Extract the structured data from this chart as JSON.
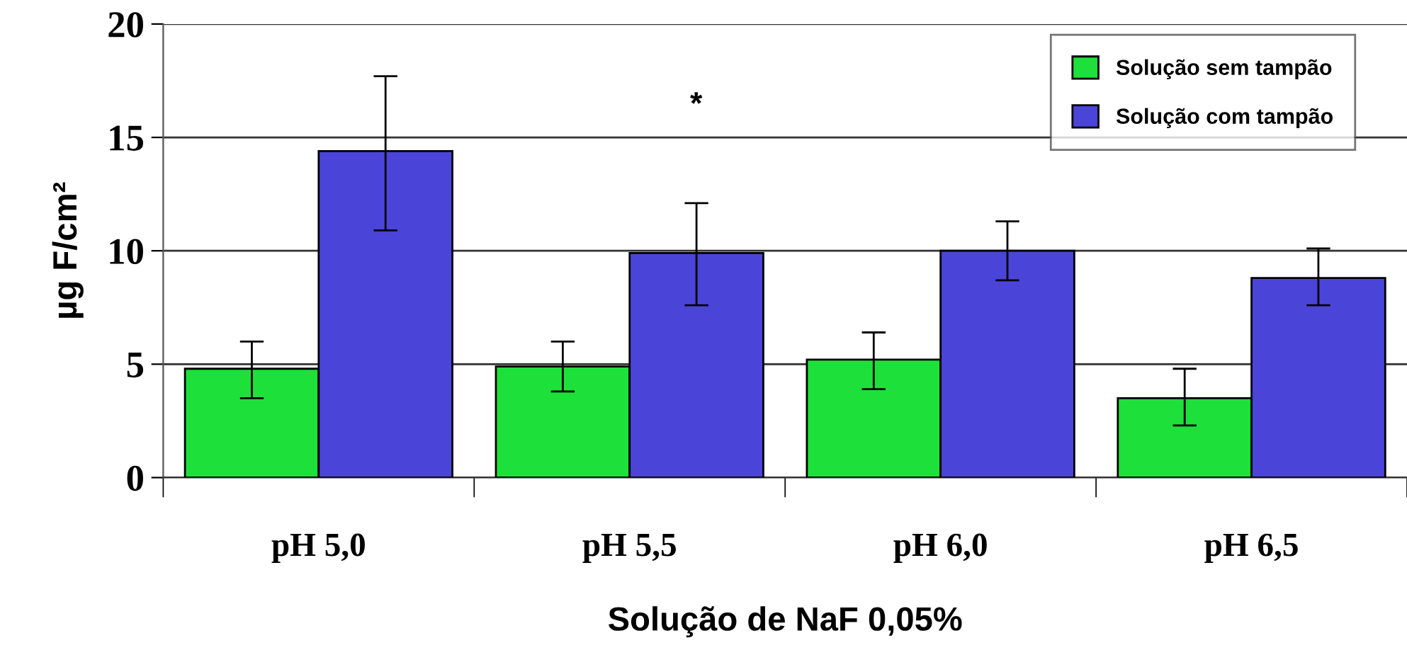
{
  "chart_data": {
    "type": "bar",
    "xlabel": "Solução de NaF 0,05%",
    "ylabel": "µg F/cm²",
    "categories": [
      "pH 5,0",
      "pH 5,5",
      "pH 6,0",
      "pH 6,5"
    ],
    "series": [
      {
        "name": "Solução sem tampão",
        "color": "#1ee03a",
        "values": [
          4.8,
          4.9,
          5.2,
          3.5
        ],
        "errors": [
          [
            3.5,
            6.0
          ],
          [
            3.8,
            6.0
          ],
          [
            3.9,
            6.4
          ],
          [
            2.3,
            4.8
          ]
        ]
      },
      {
        "name": "Solução com tampão",
        "color": "#4a45d8",
        "values": [
          14.4,
          9.9,
          10.0,
          8.8
        ],
        "errors": [
          [
            10.9,
            17.7
          ],
          [
            7.6,
            12.1
          ],
          [
            8.7,
            11.3
          ],
          [
            7.6,
            10.1
          ]
        ]
      }
    ],
    "annotations": [
      "*"
    ],
    "ylim": [
      0,
      20
    ],
    "yticks": [
      0,
      5,
      10,
      15,
      20
    ],
    "grid": "y",
    "legend": "top right"
  }
}
